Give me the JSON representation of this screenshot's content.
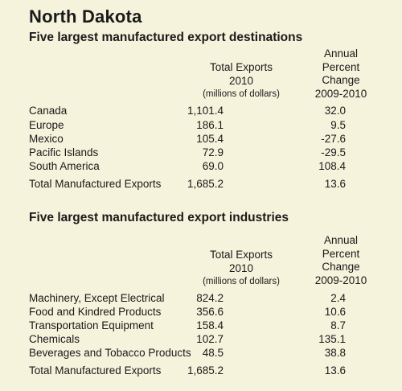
{
  "title": "North Dakota",
  "destinations": {
    "heading": "Five largest manufactured export destinations",
    "col1": [
      "Total Exports",
      "2010",
      "(millions of dollars)"
    ],
    "col2": [
      "Annual",
      "Percent",
      "Change",
      "2009-2010"
    ],
    "rows": [
      {
        "name": "Canada",
        "total": "1,101.4",
        "change": "32.0"
      },
      {
        "name": "Europe",
        "total": "186.1",
        "change": "9.5"
      },
      {
        "name": "Mexico",
        "total": "105.4",
        "change": "-27.6"
      },
      {
        "name": "Pacific Islands",
        "total": "72.9",
        "change": "-29.5"
      },
      {
        "name": "South America",
        "total": "69.0",
        "change": "108.4"
      }
    ],
    "total_row": {
      "name": "Total Manufactured Exports",
      "total": "1,685.2",
      "change": "13.6"
    }
  },
  "industries": {
    "heading": "Five largest manufactured export industries",
    "col1": [
      "Total Exports",
      "2010",
      "(millions of dollars)"
    ],
    "col2": [
      "Annual",
      "Percent",
      "Change",
      "2009-2010"
    ],
    "rows": [
      {
        "name": "Machinery, Except Electrical",
        "total": "824.2",
        "change": "2.4"
      },
      {
        "name": "Food and Kindred Products",
        "total": "356.6",
        "change": "10.6"
      },
      {
        "name": "Transportation Equipment",
        "total": "158.4",
        "change": "8.7"
      },
      {
        "name": "Chemicals",
        "total": "102.7",
        "change": "135.1"
      },
      {
        "name": "Beverages and Tobacco Products",
        "total": "48.5",
        "change": "38.8"
      }
    ],
    "total_row": {
      "name": "Total Manufactured Exports",
      "total": "1,685.2",
      "change": "13.6"
    }
  }
}
